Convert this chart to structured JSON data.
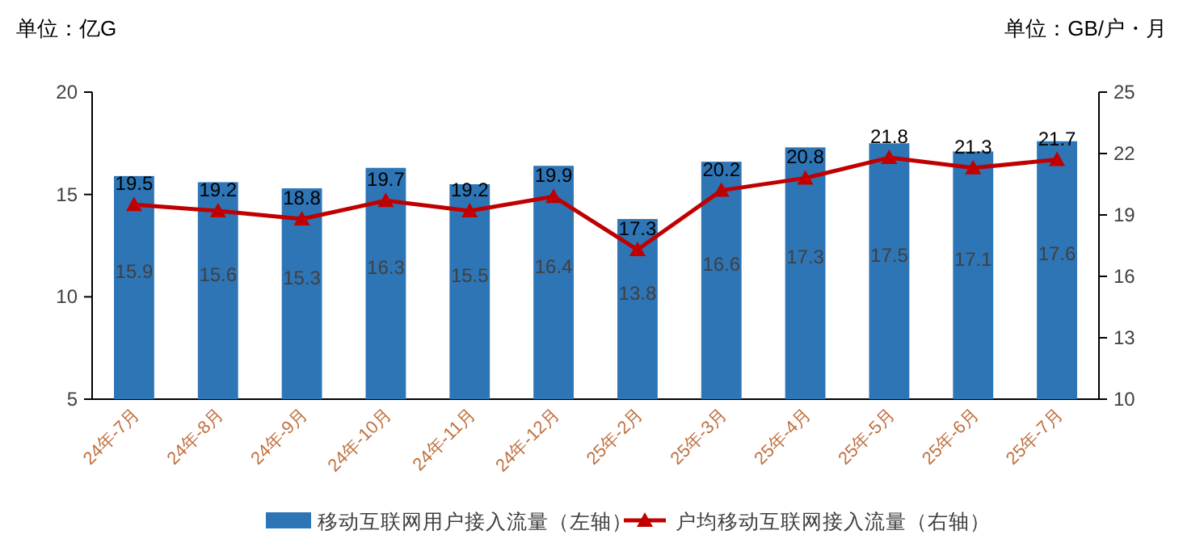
{
  "chart_data": {
    "type": "bar",
    "ylabel": "单位：亿G",
    "y2label": "单位：GB/户・月",
    "categories": [
      "24年-7月",
      "24年-8月",
      "24年-9月",
      "24年-10月",
      "24年-11月",
      "24年-12月",
      "25年-2月",
      "25年-3月",
      "25年-4月",
      "25年-5月",
      "25年-6月",
      "25年-7月"
    ],
    "series": [
      {
        "name": "移动互联网用户接入流量（左轴）",
        "color": "#2e75b6",
        "values": [
          15.9,
          15.6,
          15.3,
          16.3,
          15.5,
          16.4,
          13.8,
          16.6,
          17.3,
          17.5,
          17.1,
          17.6
        ]
      },
      {
        "name": "户均移动互联网接入流量（右轴）",
        "type": "line",
        "axis": "y2",
        "color": "#c00000",
        "marker": "triangle",
        "values": [
          19.5,
          19.2,
          18.8,
          19.7,
          19.2,
          19.9,
          17.3,
          20.2,
          20.8,
          21.8,
          21.3,
          21.7
        ]
      }
    ],
    "ylim": [
      5,
      20
    ],
    "yticks": [
      5,
      10,
      15,
      20
    ],
    "y2lim": [
      10,
      25
    ],
    "y2ticks": [
      10,
      13,
      16,
      19,
      22,
      25
    ],
    "data_labels": true,
    "legend": "bottom",
    "grid": false
  }
}
